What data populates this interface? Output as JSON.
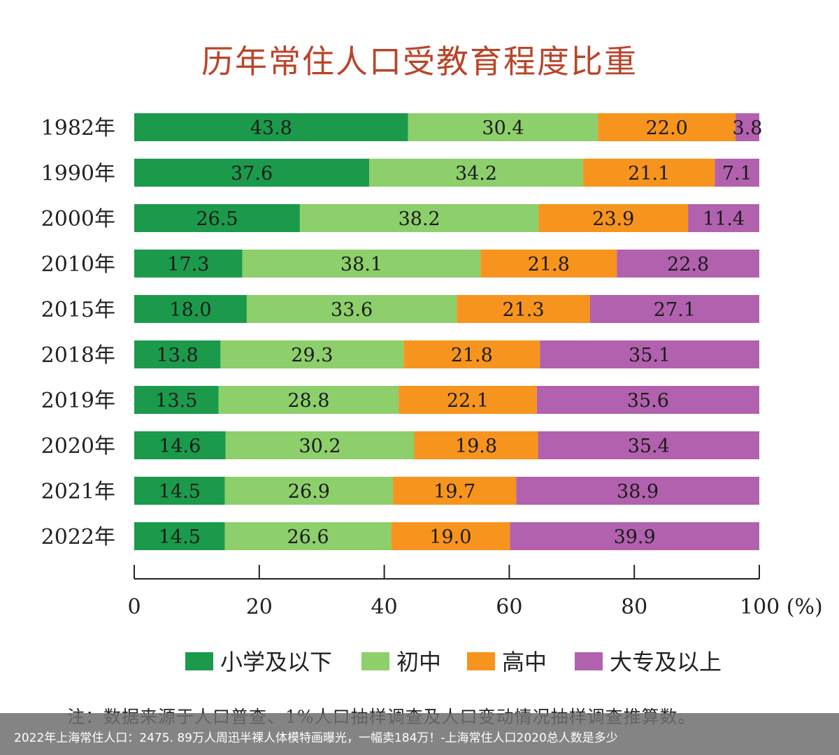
{
  "chart_data": {
    "type": "bar",
    "orientation": "horizontal",
    "stacked": true,
    "title": "历年常住人口受教育程度比重",
    "categories": [
      "1982年",
      "1990年",
      "2000年",
      "2010年",
      "2015年",
      "2018年",
      "2019年",
      "2020年",
      "2021年",
      "2022年"
    ],
    "series": [
      {
        "name": "小学及以下",
        "color": "#1b9a4b",
        "values": [
          43.8,
          37.6,
          26.5,
          17.3,
          18.0,
          13.8,
          13.5,
          14.6,
          14.5,
          14.5
        ]
      },
      {
        "name": "初中",
        "color": "#8dcf6b",
        "values": [
          30.4,
          34.2,
          38.2,
          38.1,
          33.6,
          29.3,
          28.8,
          30.2,
          26.9,
          26.6
        ]
      },
      {
        "name": "高中",
        "color": "#f7941d",
        "values": [
          22.0,
          21.1,
          23.9,
          21.8,
          21.3,
          21.8,
          22.1,
          19.8,
          19.7,
          19.0
        ]
      },
      {
        "name": "大专及以上",
        "color": "#b261ae",
        "values": [
          3.8,
          7.1,
          11.4,
          22.8,
          27.1,
          35.1,
          35.6,
          35.4,
          38.9,
          39.9
        ]
      }
    ],
    "xlim": [
      0,
      100
    ],
    "xticks": [
      "0",
      "20",
      "40",
      "60",
      "80",
      "100 (%)"
    ],
    "grid": false,
    "legend": "bottom",
    "note": "注：数据来源于人口普查、1%人口抽样调查及人口变动情况抽样调查推算数。"
  },
  "caption": "2022年上海常住人口：2475. 89万人周迅半裸人体模特画曝光，一幅卖184万！-上海常住人口2020总人数是多少"
}
